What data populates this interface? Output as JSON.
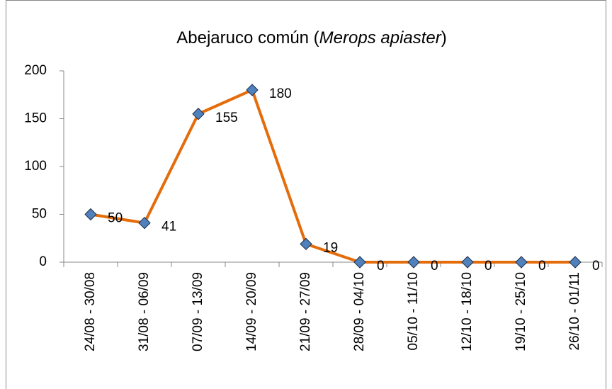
{
  "chart_data": {
    "type": "line",
    "title": [
      "Abejaruco común (",
      "Merops apiaster",
      ")"
    ],
    "categories": [
      "24/08 - 30/08",
      "31/08 - 06/09",
      "07/09 - 13/09",
      "14/09 - 20/09",
      "21/09 - 27/09",
      "28/09 - 04/10",
      "05/10 - 11/10",
      "12/10 - 18/10",
      "19/10 - 25/10",
      "26/10 - 01/11"
    ],
    "values": [
      50,
      41,
      155,
      180,
      19,
      0,
      0,
      0,
      0,
      0
    ],
    "color": "#e46c0a",
    "marker_color": "#4f81bd",
    "ylim": [
      0,
      200
    ],
    "yticks": [
      0,
      50,
      100,
      150,
      200
    ],
    "grid": false
  }
}
